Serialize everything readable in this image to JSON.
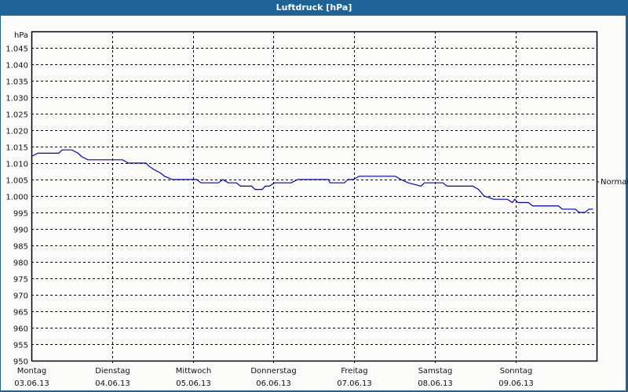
{
  "window": {
    "title": "Luftdruck [hPa]"
  },
  "colors": {
    "titlebar": "#1e6296",
    "line": "#0000c8",
    "grid": "#000000",
    "background": "#fbfcfa"
  },
  "chart_data": {
    "type": "line",
    "title": "Luftdruck [hPa]",
    "xlabel": "",
    "ylabel": "hPa",
    "ylim": [
      950,
      1050
    ],
    "yticks": [
      950,
      955,
      960,
      965,
      970,
      975,
      980,
      985,
      990,
      995,
      1000,
      1005,
      1010,
      1015,
      1020,
      1025,
      1030,
      1035,
      1040,
      1045
    ],
    "ytick_labels": [
      "950",
      "955",
      "960",
      "965",
      "970",
      "975",
      "980",
      "985",
      "990",
      "995",
      "1.000",
      "1.005",
      "1.010",
      "1.015",
      "1.020",
      "1.025",
      "1.030",
      "1.035",
      "1.040",
      "1.045"
    ],
    "categories": [
      {
        "day": "Montag",
        "date": "03.06.13"
      },
      {
        "day": "Dienstag",
        "date": "04.06.13"
      },
      {
        "day": "Mittwoch",
        "date": "05.06.13"
      },
      {
        "day": "Donnerstag",
        "date": "06.06.13"
      },
      {
        "day": "Freitag",
        "date": "07.06.13"
      },
      {
        "day": "Samstag",
        "date": "08.06.13"
      },
      {
        "day": "Sonntag",
        "date": "09.06.13"
      }
    ],
    "grid": true,
    "reference_line": {
      "label": "Normal",
      "value": 1004
    },
    "series": [
      {
        "name": "Luftdruck",
        "x_days": [
          0,
          0.08,
          0.34,
          0.38,
          0.5,
          0.58,
          0.62,
          0.7,
          1.13,
          1.2,
          1.42,
          1.46,
          1.52,
          1.6,
          1.65,
          1.75,
          2.05,
          2.1,
          2.32,
          2.37,
          2.44,
          2.54,
          2.59,
          2.73,
          2.77,
          2.86,
          2.9,
          2.95,
          3.01,
          3.22,
          3.3,
          3.68,
          3.7,
          3.88,
          3.92,
          3.99,
          4.06,
          4.51,
          4.58,
          4.67,
          4.83,
          4.87,
          5.1,
          5.15,
          5.47,
          5.54,
          5.61,
          5.73,
          5.9,
          5.96,
          5.99,
          6.03,
          6.16,
          6.21,
          6.53,
          6.58,
          6.74,
          6.79,
          6.86,
          6.91,
          6.96
        ],
        "values": [
          1012,
          1013,
          1013,
          1014,
          1014,
          1013,
          1012,
          1011,
          1011,
          1010,
          1010,
          1009,
          1008,
          1007,
          1006,
          1005,
          1005,
          1004,
          1004,
          1005,
          1004,
          1004,
          1003,
          1003,
          1002,
          1002,
          1003,
          1003,
          1004,
          1004,
          1005,
          1005,
          1004,
          1004,
          1005,
          1005,
          1006,
          1006,
          1005,
          1004,
          1003,
          1004,
          1004,
          1003,
          1003,
          1002,
          1000,
          999,
          999,
          998,
          999,
          998,
          998,
          997,
          997,
          996,
          996,
          995,
          995,
          996,
          996
        ]
      }
    ]
  }
}
